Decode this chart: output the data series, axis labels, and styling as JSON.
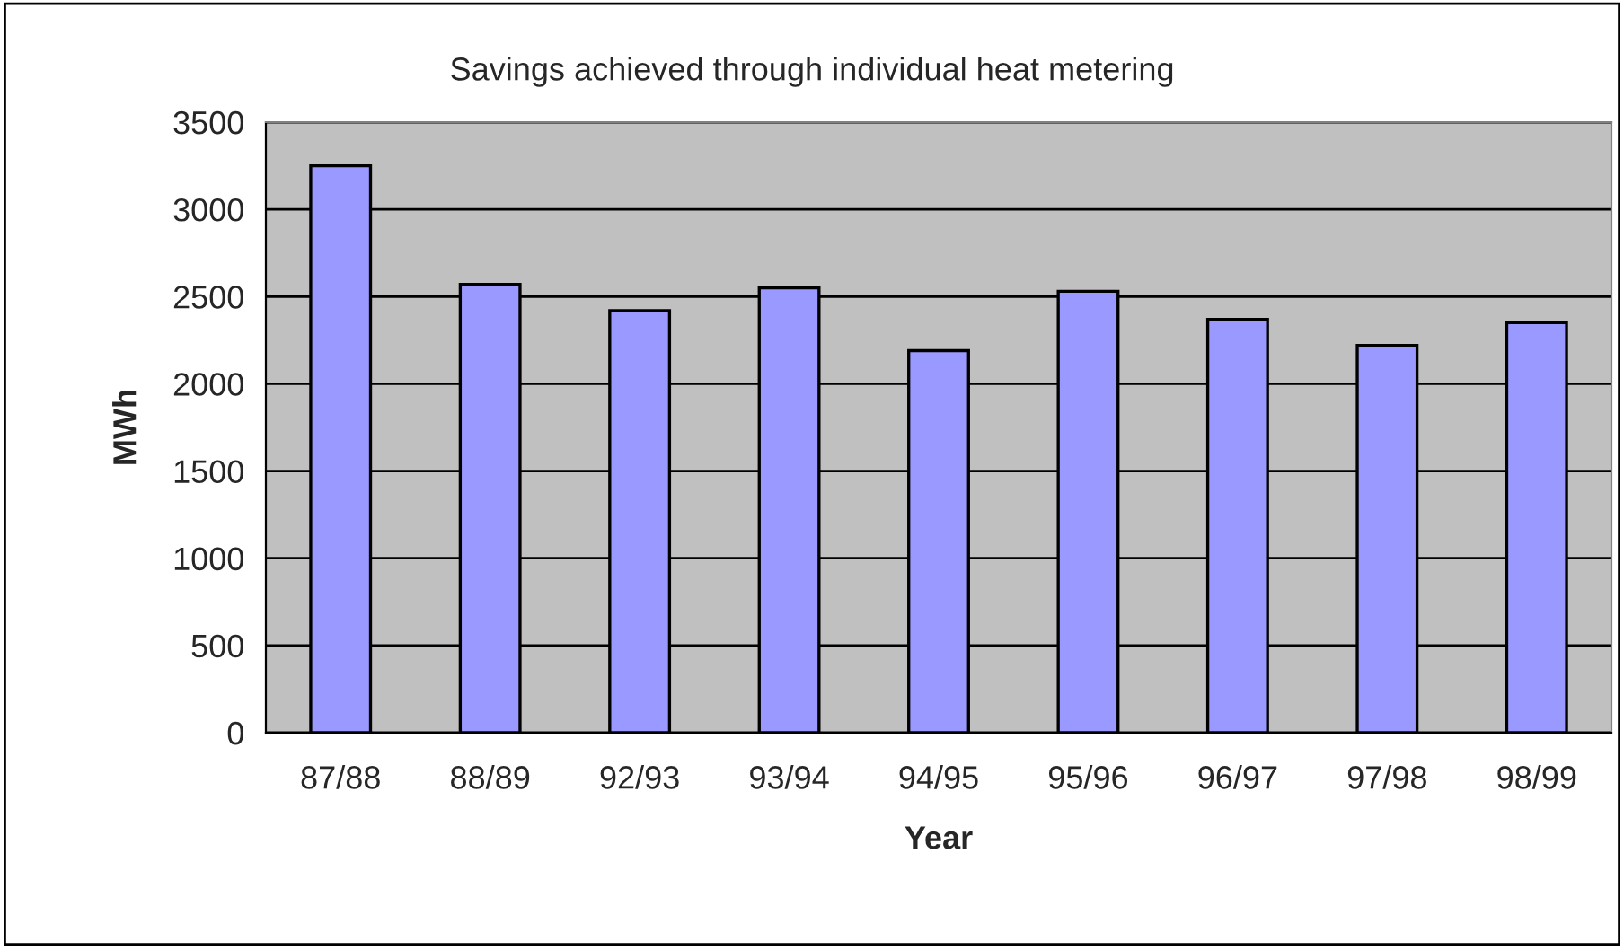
{
  "chart_data": {
    "type": "bar",
    "title": "Savings achieved through individual heat metering",
    "xlabel": "Year",
    "ylabel": "MWh",
    "categories": [
      "87/88",
      "88/89",
      "92/93",
      "93/94",
      "94/95",
      "95/96",
      "96/97",
      "97/98",
      "98/99"
    ],
    "values": [
      3250,
      2570,
      2420,
      2550,
      2190,
      2530,
      2370,
      2220,
      2350
    ],
    "color": "#9999ff",
    "ylim": [
      0,
      3500
    ],
    "yticks": [
      0,
      500,
      1000,
      1500,
      2000,
      2500,
      3000,
      3500
    ],
    "grid": "y",
    "legend": false
  }
}
